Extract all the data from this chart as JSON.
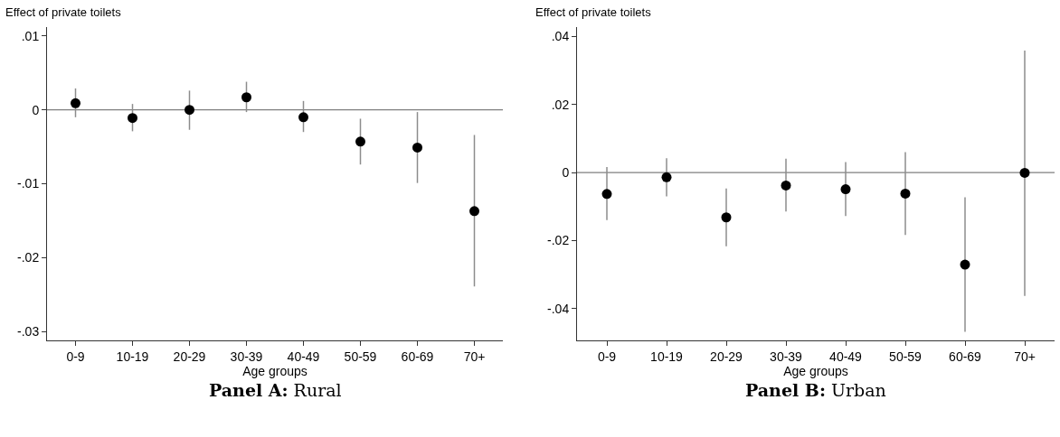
{
  "chart_data": [
    {
      "type": "scatter",
      "ylabel": "Effect of private toilets",
      "xlabel": "Age groups",
      "categories": [
        "0-9",
        "10-19",
        "20-29",
        "30-39",
        "40-49",
        "50-59",
        "60-69",
        "70+"
      ],
      "series": [
        {
          "color": "#000000",
          "values": [
            0.0009,
            -0.0011,
            0.0,
            0.0017,
            -0.001,
            -0.0043,
            -0.0051,
            -0.0137
          ],
          "errors": [
            [
              -0.001,
              0.0029
            ],
            [
              -0.0029,
              0.0008
            ],
            [
              -0.0027,
              0.0026
            ],
            [
              -0.0003,
              0.0038
            ],
            [
              -0.003,
              0.0012
            ],
            [
              -0.0074,
              -0.0012
            ],
            [
              -0.0099,
              -0.0003
            ],
            [
              -0.0239,
              -0.0034
            ]
          ]
        }
      ],
      "ylim": [
        -0.0312,
        0.0112
      ],
      "yticks": [
        {
          "value": 0.01,
          "label": ".01"
        },
        0,
        {
          "value": -0.01,
          "label": "-.01"
        },
        {
          "value": -0.02,
          "label": "-.02"
        },
        {
          "value": -0.03,
          "label": "-.03"
        }
      ],
      "ref_lines": [
        {
          "axis": "y",
          "value": 0,
          "color": "#7f7f7f"
        }
      ],
      "grid": false,
      "marker": "circle",
      "annotations": [
        "Panel A: Rural"
      ]
    },
    {
      "type": "scatter",
      "ylabel": "Effect of private toilets",
      "xlabel": "Age groups",
      "categories": [
        "0-9",
        "10-19",
        "20-29",
        "30-39",
        "40-49",
        "50-59",
        "60-69",
        "70+"
      ],
      "series": [
        {
          "color": "#000000",
          "values": [
            -0.0063,
            -0.0014,
            -0.0132,
            -0.0038,
            -0.0049,
            -0.0062,
            -0.0271,
            -0.0001
          ],
          "errors": [
            [
              -0.014,
              0.0016
            ],
            [
              -0.007,
              0.0042
            ],
            [
              -0.0217,
              -0.0047
            ],
            [
              -0.0115,
              0.0041
            ],
            [
              -0.0128,
              0.0031
            ],
            [
              -0.0184,
              0.006
            ],
            [
              -0.0469,
              -0.0073
            ],
            [
              -0.0363,
              0.0359
            ]
          ]
        }
      ],
      "ylim": [
        -0.0494,
        0.0428
      ],
      "yticks": [
        {
          "value": 0.04,
          "label": ".04"
        },
        {
          "value": 0.02,
          "label": ".02"
        },
        0,
        {
          "value": -0.02,
          "label": "-.02"
        },
        {
          "value": -0.04,
          "label": "-.04"
        }
      ],
      "ref_lines": [
        {
          "axis": "y",
          "value": 0,
          "color": "#7f7f7f"
        }
      ],
      "grid": false,
      "marker": "circle",
      "annotations": [
        "Panel B: Urban"
      ]
    }
  ]
}
